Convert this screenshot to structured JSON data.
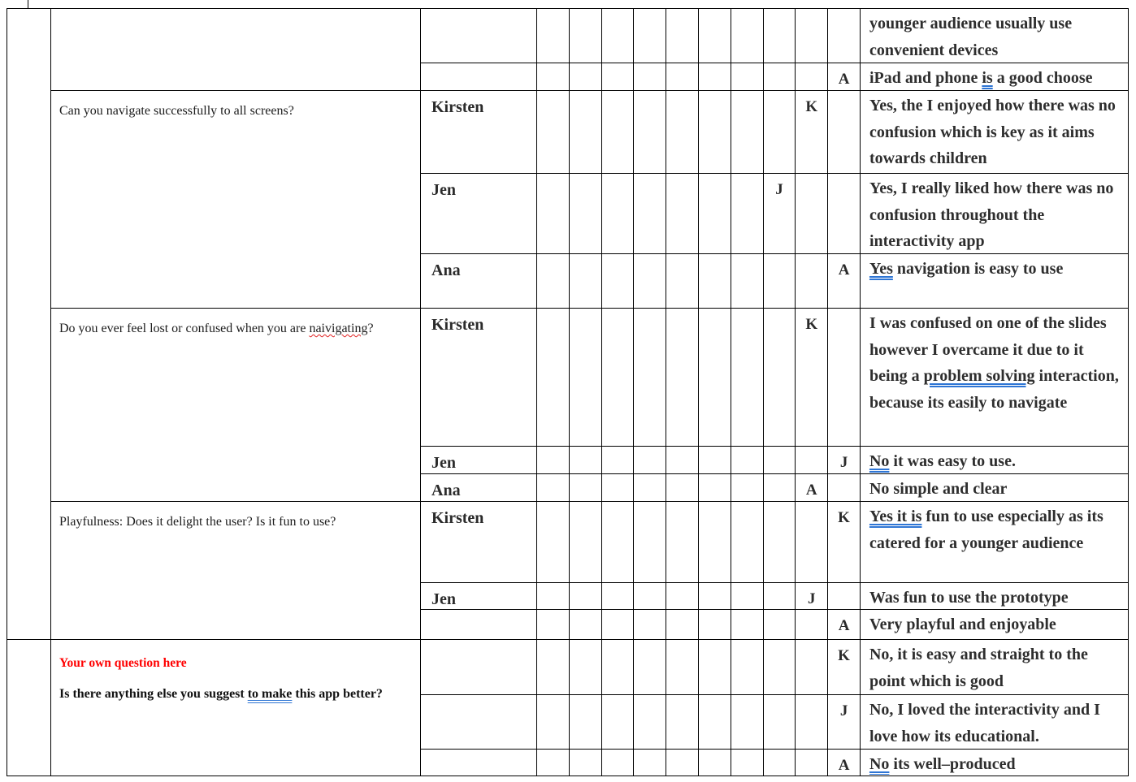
{
  "document": {
    "type": "usability-test-response-table",
    "rating_scale_columns": 10,
    "colors": {
      "table_border": "#000000",
      "body_text": "#2e2e2e",
      "question_text": "#1c1c1c",
      "custom_question_red": "#ff0000",
      "grammar_underline_blue": "#2e75d4",
      "spelling_underline_red": "#e02020"
    },
    "groups": [
      {
        "question_segments": [],
        "rows": [
          {
            "name": "",
            "mark": "",
            "mark_col": 0,
            "comment": [
              {
                "t": "younger audience usually use convenient devices"
              }
            ]
          },
          {
            "name": "",
            "mark": "A",
            "mark_col": 10,
            "comment": [
              {
                "t": "iPad and phone "
              },
              {
                "t": "is",
                "u": "gram"
              },
              {
                "t": " a good choose"
              }
            ]
          }
        ]
      },
      {
        "question_segments": [
          {
            "t": "Can you navigate successfully to all screens?"
          }
        ],
        "rows": [
          {
            "name": "Kirsten",
            "mark": "K",
            "mark_col": 9,
            "comment": [
              {
                "t": "Yes, the I enjoyed how there was no confusion which is key as it aims towards children"
              }
            ]
          },
          {
            "name": "Jen",
            "mark": "J",
            "mark_col": 8,
            "comment": [
              {
                "t": "Yes, I really liked how there was no confusion throughout the interactivity app"
              }
            ]
          },
          {
            "name": "Ana",
            "mark": "A",
            "mark_col": 10,
            "comment": [
              {
                "t": "Yes",
                "u": "gram"
              },
              {
                "t": " navigation is easy to use"
              }
            ]
          }
        ]
      },
      {
        "question_segments": [
          {
            "t": "Do you ever feel lost or confused when you are "
          },
          {
            "t": "naivigating",
            "u": "spell"
          },
          {
            "t": "?"
          }
        ],
        "rows": [
          {
            "name": "Kirsten",
            "mark": "K",
            "mark_col": 9,
            "comment": [
              {
                "t": "I was confused on one of the slides however I overcame it due to it being a "
              },
              {
                "t": "problem solving",
                "u": "gram"
              },
              {
                "t": " interaction, because its easily to navigate"
              }
            ]
          },
          {
            "name": "Jen",
            "mark": "J",
            "mark_col": 10,
            "comment": [
              {
                "t": "No",
                "u": "gram"
              },
              {
                "t": " it was easy to use."
              }
            ]
          },
          {
            "name": "Ana",
            "mark": "A",
            "mark_col": 9,
            "comment": [
              {
                "t": "No simple and clear"
              }
            ]
          }
        ]
      },
      {
        "question_segments": [
          {
            "t": "Playfulness: Does it delight the user? Is it fun to use?"
          }
        ],
        "rows": [
          {
            "name": "Kirsten",
            "mark": "K",
            "mark_col": 10,
            "comment": [
              {
                "t": "Yes it is",
                "u": "gram"
              },
              {
                "t": " fun to use especially as its catered for a younger audience"
              }
            ]
          },
          {
            "name": "Jen",
            "mark": "J",
            "mark_col": 9,
            "comment": [
              {
                "t": "Was fun to use the prototype"
              }
            ]
          },
          {
            "name": "",
            "mark": "A",
            "mark_col": 10,
            "comment": [
              {
                "t": "Very playful and enjoyable"
              }
            ]
          }
        ]
      },
      {
        "question_red": "Your own question here",
        "question_segments": [
          {
            "t": "Is there anything else you suggest "
          },
          {
            "t": "to make",
            "u": "gram"
          },
          {
            "t": " this app better?"
          }
        ],
        "rows": [
          {
            "name": "",
            "mark": "K",
            "mark_col": 10,
            "comment": [
              {
                "t": "No, it is easy and straight to the point which is good"
              }
            ]
          },
          {
            "name": "",
            "mark": "J",
            "mark_col": 10,
            "comment": [
              {
                "t": "No, I loved the interactivity and I love how its educational."
              }
            ]
          },
          {
            "name": "",
            "mark": "A",
            "mark_col": 10,
            "comment": [
              {
                "t": "No",
                "u": "gram"
              },
              {
                "t": " its well–produced"
              }
            ]
          }
        ]
      }
    ]
  }
}
